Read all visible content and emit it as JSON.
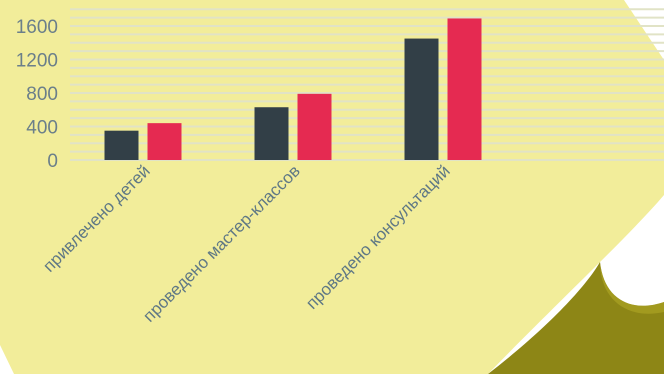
{
  "chart_data": {
    "type": "bar",
    "categories": [
      "привлечено детей",
      "проведено мастер-классов",
      "проведено консультаций"
    ],
    "series": [
      {
        "values": [
          350,
          630,
          1450
        ]
      },
      {
        "values": [
          440,
          790,
          1690
        ]
      }
    ],
    "ylim": [
      0,
      1800
    ],
    "yticks": [
      0,
      400,
      800,
      1200,
      1600
    ],
    "grid": true,
    "legend": "none",
    "colors": {
      "series": [
        "#323f47",
        "#e52a51"
      ],
      "paper": "#f2ed9a",
      "page_curl": "#8d8616",
      "gridline": "#e1e3c6",
      "tick_text": "#6b7f8a"
    }
  }
}
